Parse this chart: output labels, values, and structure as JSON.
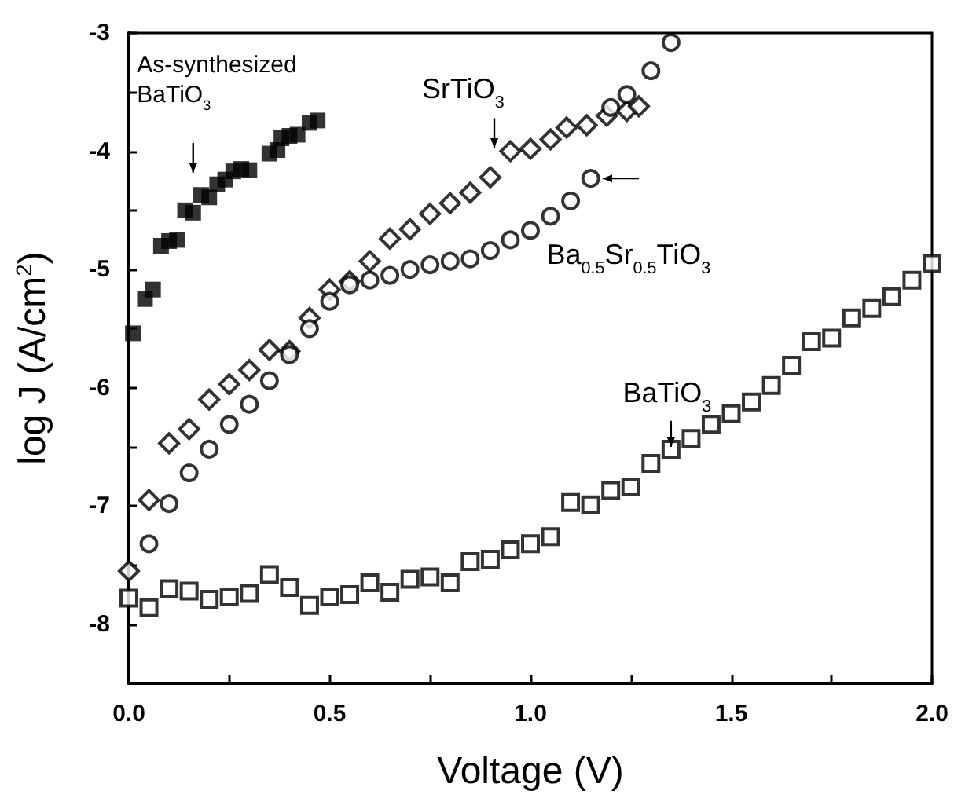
{
  "chart_data": {
    "type": "scatter",
    "xlabel": "Voltage (V)",
    "ylabel": "log J (A/cm$^{2}$)",
    "xlim": [
      0,
      2
    ],
    "ylim": [
      -8.5,
      -3
    ],
    "xticks": [
      {
        "value": 0,
        "label": "0.0"
      },
      {
        "value": 0.25,
        "label": null
      },
      0.5,
      {
        "value": 0.75,
        "label": null
      },
      {
        "value": 1,
        "label": "1.0"
      },
      {
        "value": 1.25,
        "label": null
      },
      1.5,
      {
        "value": 1.75,
        "label": null
      },
      {
        "value": 2,
        "label": "2.0"
      }
    ],
    "yticks": [
      -3,
      {
        "value": -3.5,
        "label": null
      },
      -4,
      {
        "value": -4.5,
        "label": null
      },
      -5,
      {
        "value": -5.5,
        "label": null
      },
      -6,
      {
        "value": -6.5,
        "label": null
      },
      -7,
      {
        "value": -7.5,
        "label": null
      },
      -8
    ],
    "grid": false,
    "legend": false,
    "series": [
      {
        "name": "As-synthesized BaTiO$_{3}$",
        "color": "#000000",
        "marker": "square",
        "x": [
          0.01,
          0.04,
          0.06,
          0.08,
          0.1,
          0.12,
          0.14,
          0.16,
          0.18,
          0.2,
          0.22,
          0.24,
          0.26,
          0.28,
          0.3,
          0.35,
          0.37,
          0.38,
          0.4,
          0.42,
          0.45,
          0.47
        ],
        "values": [
          -5.54,
          -5.25,
          -5.17,
          -4.8,
          -4.76,
          -4.75,
          -4.5,
          -4.52,
          -4.37,
          -4.39,
          -4.28,
          -4.24,
          -4.17,
          -4.15,
          -4.16,
          -4.02,
          -3.99,
          -3.89,
          -3.87,
          -3.86,
          -3.76,
          -3.74
        ]
      },
      {
        "name": "SrTiO$_{3}$",
        "color": "#000000",
        "marker": "diamond",
        "x": [
          0,
          0.05,
          0.1,
          0.15,
          0.2,
          0.25,
          0.3,
          0.35,
          0.4,
          0.45,
          0.5,
          0.55,
          0.6,
          0.65,
          0.7,
          0.75,
          0.8,
          0.85,
          0.9,
          0.95,
          1.0,
          1.05,
          1.09,
          1.14,
          1.19,
          1.24,
          1.27
        ],
        "values": [
          -7.55,
          -6.95,
          -6.47,
          -6.35,
          -6.1,
          -5.97,
          -5.85,
          -5.68,
          -5.69,
          -5.41,
          -5.17,
          -5.1,
          -4.93,
          -4.74,
          -4.66,
          -4.53,
          -4.44,
          -4.35,
          -4.22,
          -4.0,
          -3.98,
          -3.9,
          -3.8,
          -3.78,
          -3.7,
          -3.66,
          -3.62
        ]
      },
      {
        "name": "Ba$_{0.5}$Sr$_{0.5}$TiO$_{3}$",
        "color": "#000000",
        "marker": "circle",
        "x": [
          0.05,
          0.1,
          0.15,
          0.2,
          0.25,
          0.3,
          0.35,
          0.4,
          0.45,
          0.5,
          0.55,
          0.6,
          0.65,
          0.7,
          0.75,
          0.8,
          0.85,
          0.9,
          0.95,
          1.0,
          1.05,
          1.1,
          1.15,
          1.2,
          1.24,
          1.3,
          1.35
        ],
        "values": [
          -7.32,
          -6.98,
          -6.72,
          -6.52,
          -6.31,
          -6.14,
          -5.94,
          -5.72,
          -5.5,
          -5.27,
          -5.13,
          -5.09,
          -5.05,
          -5.0,
          -4.96,
          -4.93,
          -4.91,
          -4.84,
          -4.75,
          -4.67,
          -4.55,
          -4.42,
          -4.23,
          -3.63,
          -3.52,
          -3.32,
          -3.08
        ]
      },
      {
        "name": "BaTiO$_{3}$",
        "color": "#000000",
        "marker": "square",
        "x": [
          0,
          0.05,
          0.1,
          0.15,
          0.2,
          0.25,
          0.3,
          0.35,
          0.4,
          0.45,
          0.5,
          0.55,
          0.6,
          0.65,
          0.7,
          0.75,
          0.8,
          0.85,
          0.9,
          0.95,
          1.0,
          1.05,
          1.1,
          1.15,
          1.2,
          1.25,
          1.3,
          1.35,
          1.4,
          1.45,
          1.5,
          1.55,
          1.6,
          1.65,
          1.7,
          1.75,
          1.8,
          1.85,
          1.9,
          1.95,
          2.0
        ],
        "values": [
          -7.78,
          -7.86,
          -7.7,
          -7.72,
          -7.79,
          -7.77,
          -7.74,
          -7.58,
          -7.69,
          -7.84,
          -7.77,
          -7.75,
          -7.65,
          -7.73,
          -7.62,
          -7.6,
          -7.65,
          -7.47,
          -7.45,
          -7.37,
          -7.32,
          -7.26,
          -6.97,
          -6.99,
          -6.87,
          -6.84,
          -6.64,
          -6.52,
          -6.43,
          -6.31,
          -6.22,
          -6.12,
          -5.98,
          -5.81,
          -5.61,
          -5.58,
          -5.41,
          -5.33,
          -5.23,
          -5.09,
          -4.95
        ]
      }
    ]
  }
}
